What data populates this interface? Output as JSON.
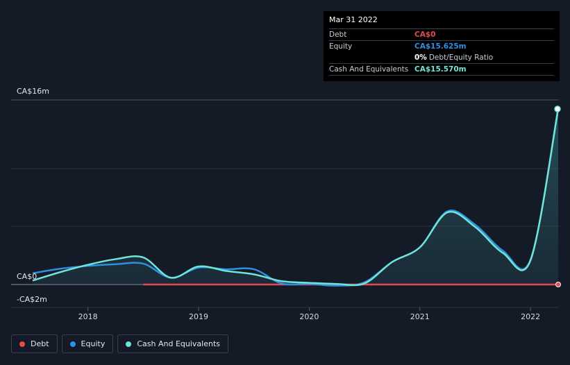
{
  "chart_data": {
    "type": "line",
    "title": "",
    "y_axis": {
      "top_label": "CA$16m",
      "zero_label": "CA$0",
      "bottom_label": "-CA$2m",
      "ylim": [
        -2,
        16
      ]
    },
    "x_ticks": [
      "2018",
      "2019",
      "2020",
      "2021",
      "2022"
    ],
    "x_tick_values": [
      2018.0,
      2019.0,
      2020.0,
      2021.0,
      2022.0
    ],
    "xlim": [
      2017.2,
      2022.25
    ],
    "grid": true,
    "series": [
      {
        "name": "Debt",
        "color": "#e64a4f",
        "x": [
          2018.5,
          2022.25
        ],
        "values": [
          0,
          0
        ]
      },
      {
        "name": "Equity",
        "color": "#2f8fe0",
        "x": [
          2017.5,
          2017.75,
          2018.0,
          2018.25,
          2018.5,
          2018.75,
          2019.0,
          2019.25,
          2019.5,
          2019.75,
          2020.0,
          2020.25,
          2020.5,
          2020.75,
          2021.0,
          2021.25,
          2021.5,
          2021.75,
          2022.0,
          2022.25
        ],
        "values": [
          1.0,
          1.4,
          1.65,
          1.8,
          1.85,
          0.6,
          1.5,
          1.35,
          1.35,
          0.1,
          0.05,
          -0.1,
          0.2,
          2.0,
          3.3,
          6.5,
          5.3,
          3.0,
          2.2,
          15.625
        ]
      },
      {
        "name": "Cash And Equivalents",
        "color": "#6ee5d7",
        "x": [
          2017.5,
          2017.75,
          2018.0,
          2018.25,
          2018.5,
          2018.75,
          2019.0,
          2019.25,
          2019.5,
          2019.75,
          2020.0,
          2020.25,
          2020.5,
          2020.75,
          2021.0,
          2021.25,
          2021.5,
          2021.75,
          2022.0,
          2022.25
        ],
        "values": [
          0.35,
          1.1,
          1.75,
          2.25,
          2.4,
          0.6,
          1.6,
          1.2,
          0.9,
          0.3,
          0.15,
          0.05,
          0.1,
          2.0,
          3.3,
          6.4,
          5.1,
          2.8,
          2.15,
          15.57
        ]
      }
    ],
    "tooltip": {
      "date": "Mar 31 2022",
      "rows": [
        {
          "label": "Debt",
          "value": "CA$0",
          "color": "#e64a4f"
        },
        {
          "label": "Equity",
          "value": "CA$15.625m",
          "color": "#2f8fe0"
        },
        {
          "label": "",
          "value": "0%",
          "suffix": "Debt/Equity Ratio",
          "color": "#ffffff"
        },
        {
          "label": "Cash And Equivalents",
          "value": "CA$15.570m",
          "color": "#6ee5d7"
        }
      ]
    },
    "legend": [
      {
        "label": "Debt",
        "color": "#e64a4f"
      },
      {
        "label": "Equity",
        "color": "#2f8fe0"
      },
      {
        "label": "Cash And Equivalents",
        "color": "#6ee5d7"
      }
    ]
  }
}
